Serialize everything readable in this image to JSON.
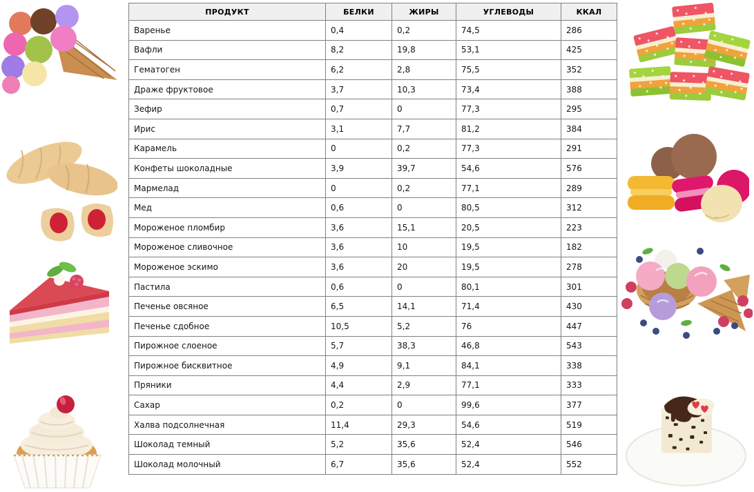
{
  "page": {
    "background": "#ffffff"
  },
  "table": {
    "headers": [
      "ПРОДУКТ",
      "БЕЛКИ",
      "ЖИРЫ",
      "УГЛЕВОДЫ",
      "ККАЛ"
    ],
    "field_names": [
      "product",
      "protein",
      "fat",
      "carbs",
      "kcal"
    ],
    "header_bg": "#f0f0f0",
    "border_color": "#808080",
    "rows": [
      [
        "Варенье",
        "0,4",
        "0,2",
        "74,5",
        "286"
      ],
      [
        "Вафли",
        "8,2",
        "19,8",
        "53,1",
        "425"
      ],
      [
        "Гематоген",
        "6,2",
        "2,8",
        "75,5",
        "352"
      ],
      [
        "Драже фруктовое",
        "3,7",
        "10,3",
        "73,4",
        "388"
      ],
      [
        "Зефир",
        "0,7",
        "0",
        "77,3",
        "295"
      ],
      [
        "Ирис",
        "3,1",
        "7,7",
        "81,2",
        "384"
      ],
      [
        "Карамель",
        "0",
        "0,2",
        "77,3",
        "291"
      ],
      [
        "Конфеты шоколадные",
        "3,9",
        "39,7",
        "54,6",
        "576"
      ],
      [
        "Мармелад",
        "0",
        "0,2",
        "77,1",
        "289"
      ],
      [
        "Мед",
        "0,6",
        "0",
        "80,5",
        "312"
      ],
      [
        "Мороженое пломбир",
        "3,6",
        "15,1",
        "20,5",
        "223"
      ],
      [
        "Мороженое сливочное",
        "3,6",
        "10",
        "19,5",
        "182"
      ],
      [
        "Мороженое эскимо",
        "3,6",
        "20",
        "19,5",
        "278"
      ],
      [
        "Пастила",
        "0,6",
        "0",
        "80,1",
        "301"
      ],
      [
        "Печенье овсяное",
        "6,5",
        "14,1",
        "71,4",
        "430"
      ],
      [
        "Печенье сдобное",
        "10,5",
        "5,2",
        "76",
        "447"
      ],
      [
        "Пирожное слоеное",
        "5,7",
        "38,3",
        "46,8",
        "543"
      ],
      [
        "Пирожное бисквитное",
        "4,9",
        "9,1",
        "84,1",
        "338"
      ],
      [
        "Пряники",
        "4,4",
        "2,9",
        "77,1",
        "333"
      ],
      [
        "Сахар",
        "0,2",
        "0",
        "99,6",
        "377"
      ],
      [
        "Халва подсолнечная",
        "11,4",
        "29,3",
        "54,6",
        "519"
      ],
      [
        "Шоколад темный",
        "5,2",
        "35,6",
        "52,4",
        "546"
      ],
      [
        "Шоколад молочный",
        "6,7",
        "35,6",
        "52,4",
        "552"
      ]
    ]
  },
  "images": {
    "left": [
      "ice-cream-cone",
      "jam-croissants",
      "berry-cake-slice",
      "cherry-cupcake"
    ],
    "right": [
      "jelly-candies",
      "macarons",
      "ice-cream-berries",
      "cake-on-plate"
    ]
  }
}
